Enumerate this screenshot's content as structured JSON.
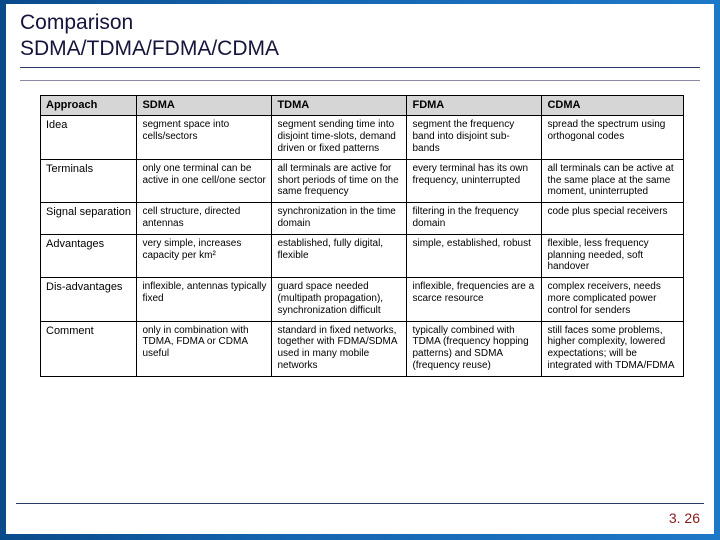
{
  "title": {
    "line1": "Comparison",
    "line2": "SDMA/TDMA/FDMA/CDMA"
  },
  "table": {
    "type": "table",
    "header_bg": "#d6d6d6",
    "border_color": "#000000",
    "font_family": "Arial",
    "header_fontsize": 11,
    "cell_fontsize": 10,
    "columns": [
      "Approach",
      "SDMA",
      "TDMA",
      "FDMA",
      "CDMA"
    ],
    "rows": [
      {
        "label": "Idea",
        "cells": [
          "segment space into cells/sectors",
          "segment sending time into disjoint time-slots, demand driven or fixed patterns",
          "segment the frequency band into disjoint sub-bands",
          "spread the spectrum using orthogonal codes"
        ]
      },
      {
        "label": "Terminals",
        "cells": [
          "only one terminal can be active in one cell/one sector",
          "all terminals are active for short periods of time on the same frequency",
          "every terminal has its own frequency, uninterrupted",
          "all terminals can be active at the same place at the same moment, uninterrupted"
        ]
      },
      {
        "label": "Signal separation",
        "cells": [
          "cell structure, directed antennas",
          "synchronization in the time domain",
          "filtering in the frequency domain",
          "code plus special receivers"
        ]
      },
      {
        "label": "Advantages",
        "cells": [
          "very simple, increases capacity per km²",
          "established, fully digital, flexible",
          "simple, established, robust",
          "flexible, less frequency planning needed, soft handover"
        ]
      },
      {
        "label": "Dis-advantages",
        "cells": [
          "inflexible, antennas typically fixed",
          "guard space needed (multipath propagation), synchronization difficult",
          "inflexible, frequencies are a scarce resource",
          "complex receivers, needs more complicated power control for senders"
        ]
      },
      {
        "label": "Comment",
        "cells": [
          "only in combination with TDMA, FDMA or CDMA useful",
          "standard in fixed networks, together with FDMA/SDMA used in many mobile networks",
          "typically combined with TDMA (frequency hopping patterns) and SDMA (frequency reuse)",
          "still faces some problems, higher complexity, lowered expectations; will be integrated with TDMA/FDMA"
        ]
      }
    ]
  },
  "page_number": "3. 26",
  "colors": {
    "slide_bg": "#ffffff",
    "outer_gradient_start": "#0a4a8a",
    "outer_gradient_end": "#1e78c8",
    "title_text": "#14143c",
    "rule_color": "#2a3a6a",
    "pagenum_color": "#8a1a1a"
  }
}
